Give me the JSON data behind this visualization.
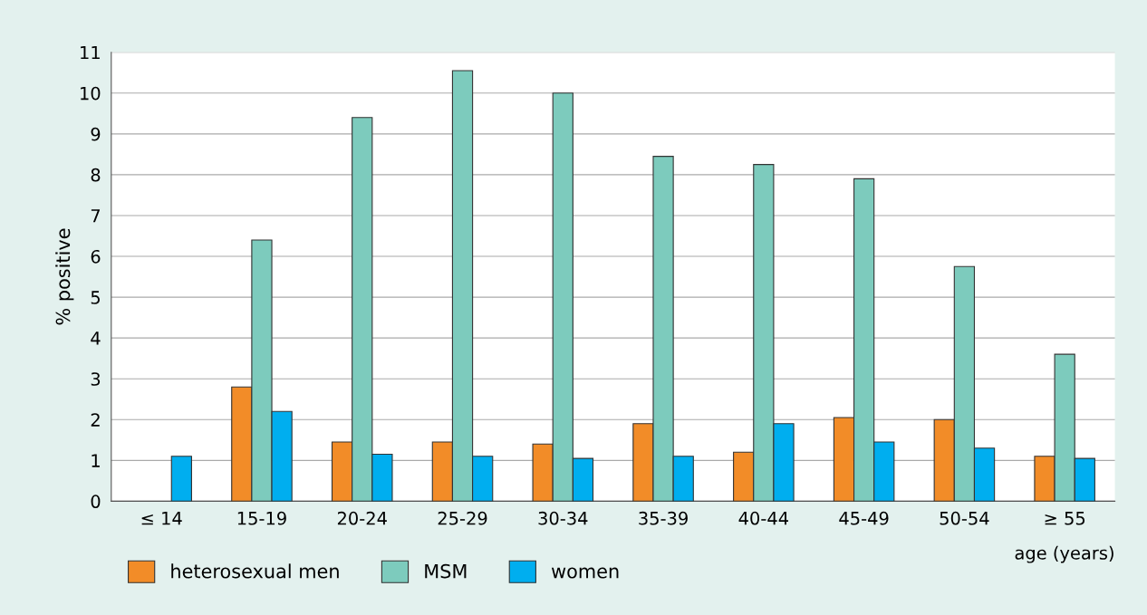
{
  "chart_data": {
    "type": "bar",
    "xlabel": "age (years)",
    "ylabel": "% positive",
    "categories": [
      "≤ 14",
      "15-19",
      "20-24",
      "25-29",
      "30-34",
      "35-39",
      "40-44",
      "45-49",
      "50-54",
      "≥ 55"
    ],
    "series": [
      {
        "name": "heterosexual men",
        "color": "#f28c28",
        "values": [
          null,
          2.8,
          1.45,
          1.45,
          1.4,
          1.9,
          1.2,
          2.05,
          2.0,
          1.1
        ]
      },
      {
        "name": "MSM",
        "color": "#7dcbbd",
        "values": [
          null,
          6.4,
          9.4,
          10.55,
          10.0,
          8.45,
          8.25,
          7.9,
          5.75,
          3.6
        ]
      },
      {
        "name": "women",
        "color": "#00aeef",
        "values": [
          1.1,
          2.2,
          1.15,
          1.1,
          1.05,
          1.1,
          1.9,
          1.45,
          1.3,
          1.05
        ]
      }
    ],
    "ylim": [
      0,
      11
    ],
    "yticks": [
      0,
      1,
      2,
      3,
      4,
      5,
      6,
      7,
      8,
      9,
      10,
      11
    ],
    "grid": "y",
    "legend": "bottom left"
  }
}
